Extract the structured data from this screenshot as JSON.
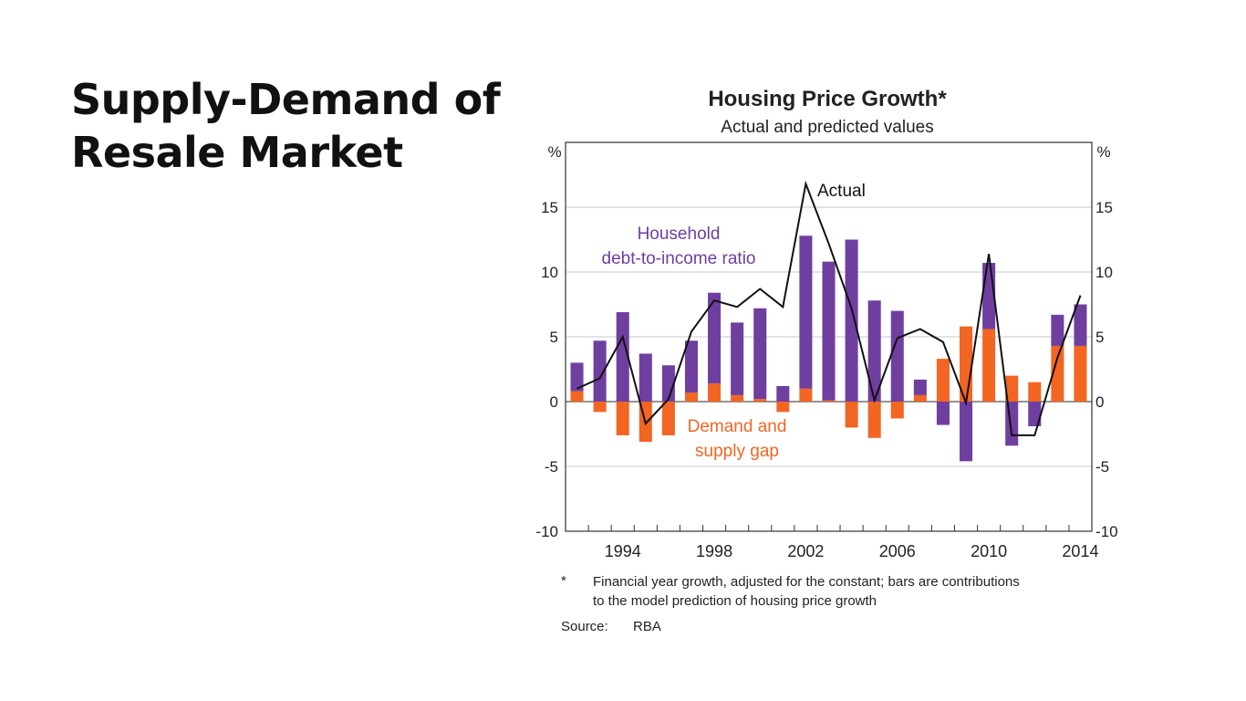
{
  "slide": {
    "title_line1": "Supply-Demand of",
    "title_line2": "Resale Market"
  },
  "chart_data": {
    "type": "bar",
    "title": "Housing Price Growth*",
    "subtitle": "Actual and predicted values",
    "ylabel_left": "%",
    "ylabel_right": "%",
    "ylim": [
      -10,
      20
    ],
    "yticks": [
      -10,
      -5,
      0,
      5,
      10,
      15
    ],
    "x": [
      1992,
      1993,
      1994,
      1995,
      1996,
      1997,
      1998,
      1999,
      2000,
      2001,
      2002,
      2003,
      2004,
      2005,
      2006,
      2007,
      2008,
      2009,
      2010,
      2011,
      2012,
      2013,
      2014
    ],
    "xtick_labels": [
      "1994",
      "1998",
      "2002",
      "2006",
      "2010",
      "2014"
    ],
    "series": [
      {
        "name": "Demand and supply gap",
        "color": "#f26522",
        "values": [
          0.8,
          -0.8,
          -2.6,
          -3.1,
          -2.6,
          0.7,
          1.4,
          0.5,
          0.2,
          -0.8,
          1.0,
          0.1,
          -2.0,
          -2.8,
          -1.3,
          0.5,
          3.3,
          5.8,
          5.6,
          2.0,
          1.5,
          4.3,
          4.3
        ]
      },
      {
        "name": "Household debt-to-income ratio",
        "color": "#6f3fa0",
        "values": [
          2.2,
          4.7,
          6.9,
          3.7,
          2.8,
          4.0,
          7.0,
          5.6,
          7.0,
          1.2,
          11.8,
          10.7,
          12.5,
          7.8,
          7.0,
          1.2,
          -1.8,
          -4.6,
          5.1,
          -3.4,
          -1.9,
          2.4,
          3.2
        ]
      },
      {
        "name": "Actual",
        "color": "#111111",
        "type": "line",
        "values": [
          1.0,
          1.8,
          5.0,
          -1.7,
          0.2,
          5.4,
          7.8,
          7.3,
          8.7,
          7.3,
          16.8,
          12.2,
          7.2,
          0.1,
          4.9,
          5.6,
          4.6,
          -0.1,
          11.4,
          -2.6,
          -2.6,
          3.4,
          8.2
        ]
      }
    ],
    "annotations": {
      "actual": "Actual",
      "household_line1": "Household",
      "household_line2": "debt-to-income ratio",
      "demand_line1": "Demand and",
      "demand_line2": "supply gap"
    }
  },
  "footnote": {
    "marker": "*",
    "line1": "Financial year growth, adjusted for the constant; bars are contributions",
    "line2": "to the model prediction of housing price growth",
    "source_label": "Source:",
    "source_value": "RBA"
  }
}
